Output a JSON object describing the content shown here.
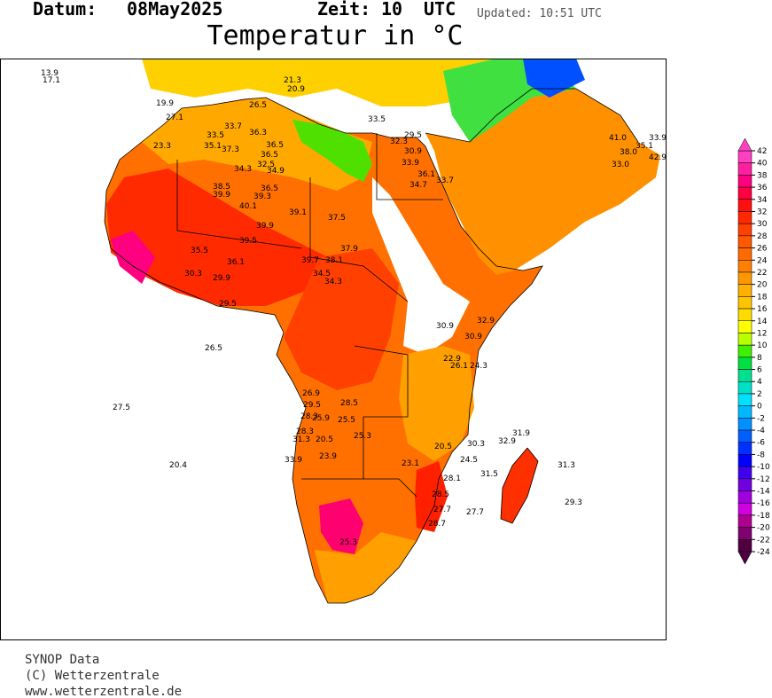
{
  "header": {
    "date_label": "Datum:",
    "date": "08May2025",
    "time_label": "Zeit:",
    "time": "10",
    "time_zone": "UTC",
    "updated": "Updated: 10:51 UTC",
    "title": "Temperatur in °C"
  },
  "legend": {
    "ticks": [
      42,
      40,
      38,
      36,
      34,
      32,
      30,
      28,
      26,
      24,
      22,
      20,
      18,
      16,
      14,
      12,
      10,
      8,
      6,
      4,
      2,
      0,
      -2,
      -4,
      -6,
      -8,
      -10,
      -12,
      -14,
      -16,
      -18,
      -20,
      -22,
      -24
    ],
    "colors": [
      "#ff40c0",
      "#ff20a0",
      "#ff0080",
      "#ff0040",
      "#ff1010",
      "#ff2800",
      "#ff4000",
      "#ff5800",
      "#ff6a00",
      "#ff8000",
      "#ff9800",
      "#ffb000",
      "#ffc400",
      "#ffdc00",
      "#ffff00",
      "#b8ff00",
      "#40f000",
      "#00e040",
      "#00e090",
      "#00e0c8",
      "#00e0ff",
      "#00b8ff",
      "#0090ff",
      "#0060ff",
      "#0030ff",
      "#0000ff",
      "#4000f0",
      "#7000e0",
      "#a000e0",
      "#d000e0",
      "#b00090",
      "#800070",
      "#500040"
    ]
  },
  "stations": [
    "33.5",
    "33.7",
    "36.3",
    "36.5",
    "35.1",
    "37.3",
    "36.5",
    "32.5",
    "34.3",
    "34.9",
    "38.5",
    "39.9",
    "36.5",
    "39.3",
    "40.1",
    "39.1",
    "37.5",
    "39.9",
    "39.5",
    "35.5",
    "36.1",
    "39.7",
    "38.1",
    "37.9",
    "34.5",
    "34.3",
    "29.9",
    "29.5",
    "30.3",
    "23.3",
    "27.1",
    "26.5",
    "33.5",
    "32.3",
    "30.9",
    "33.9",
    "36.1",
    "33.7",
    "34.7",
    "29.5",
    "26.5",
    "27.5",
    "20.4",
    "26.9",
    "29.5",
    "28.5",
    "28.3",
    "25.9",
    "25.5",
    "28.3",
    "31.3",
    "20.5",
    "25.3",
    "33.9",
    "23.9",
    "30.9",
    "30.9",
    "32.9",
    "22.9",
    "26.1",
    "24.3",
    "30.3",
    "32.9",
    "31.9",
    "20.5",
    "24.5",
    "31.5",
    "31.3",
    "29.3",
    "27.7",
    "27.7",
    "28.5",
    "23.1",
    "28.1",
    "25.3",
    "28.7",
    "20.9",
    "21.3",
    "19.9",
    "13.9",
    "17.1",
    "33.9",
    "38.0",
    "41.0",
    "35.1",
    "42.9",
    "33.0"
  ],
  "footer": [
    "SYNOP Data",
    "(C) Wetterzentrale",
    "www.wetterzentrale.de"
  ]
}
